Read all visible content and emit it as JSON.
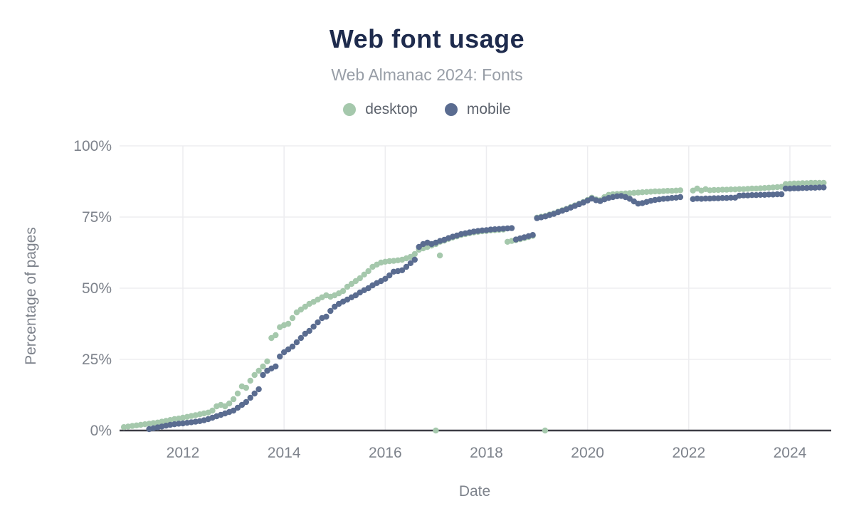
{
  "chart_data": {
    "type": "scatter",
    "title": "Web font usage",
    "subtitle": "Web Almanac 2024: Fonts",
    "legend_position": "top",
    "grid": true,
    "colors": {
      "title": "#1e2b4d",
      "subtitle": "#989ea7",
      "legendtext": "#5d636d",
      "tick": "#7d828b",
      "grid": "#ededf0",
      "axis": "#3c3c44",
      "desktop": "#a5c8ac",
      "mobile": "#5a6c90"
    },
    "x_axis": {
      "label": "Date",
      "range": [
        2010.75,
        2024.82
      ],
      "ticks": [
        {
          "v": 2012,
          "label": "2012"
        },
        {
          "v": 2014,
          "label": "2014"
        },
        {
          "v": 2016,
          "label": "2016"
        },
        {
          "v": 2018,
          "label": "2018"
        },
        {
          "v": 2020,
          "label": "2020"
        },
        {
          "v": 2022,
          "label": "2022"
        },
        {
          "v": 2024,
          "label": "2024"
        }
      ]
    },
    "y_axis": {
      "label": "Percentage of pages",
      "range": [
        0,
        100
      ],
      "ticks": [
        {
          "v": 0,
          "label": "0%"
        },
        {
          "v": 25,
          "label": "25%"
        },
        {
          "v": 50,
          "label": "50%"
        },
        {
          "v": 75,
          "label": "75%"
        },
        {
          "v": 100,
          "label": "100%"
        }
      ]
    },
    "series": [
      {
        "name": "desktop",
        "color": "#a5c8ac",
        "unit": "percent",
        "x_start": 2010.8333,
        "x_step": 0.083333,
        "values": [
          1.2,
          1.4,
          1.6,
          1.8,
          2.0,
          2.2,
          2.4,
          2.6,
          2.8,
          3.1,
          3.4,
          3.7,
          4.0,
          4.2,
          4.5,
          4.8,
          5.1,
          5.4,
          5.7,
          6.0,
          6.3,
          7.0,
          8.5,
          9.0,
          8.5,
          9.5,
          11.0,
          13.0,
          15.5,
          15.0,
          17.5,
          19.5,
          21.0,
          22.5,
          24.3,
          32.5,
          33.5,
          36.3,
          37.0,
          37.5,
          39.5,
          41.5,
          42.5,
          43.5,
          44.5,
          45.2,
          46.0,
          46.8,
          47.5,
          47.0,
          47.5,
          48.2,
          49.0,
          50.5,
          51.5,
          52.5,
          53.5,
          54.8,
          56.0,
          57.5,
          58.3,
          59.0,
          59.3,
          59.5,
          59.6,
          59.8,
          60.0,
          60.5,
          61.0,
          62.0,
          63.5,
          64.0,
          64.5,
          65.0,
          65.5,
          66.3,
          66.7,
          67.3,
          67.8,
          68.2,
          68.7,
          69.0,
          69.3,
          69.6,
          69.8,
          70.0,
          70.1,
          70.3,
          70.4,
          70.5,
          70.6,
          66.3,
          66.6,
          66.9,
          67.2,
          67.6,
          68.0,
          68.4,
          74.8,
          75.1,
          75.4,
          75.9,
          76.3,
          76.9,
          77.4,
          77.9,
          78.5,
          79.1,
          79.7,
          80.3,
          81.0,
          81.8,
          81.2,
          80.9,
          82.0,
          82.8,
          83.0,
          83.1,
          83.2,
          83.3,
          83.4,
          83.5,
          83.6,
          83.7,
          83.8,
          83.9,
          84.0,
          84.0,
          84.1,
          84.2,
          84.2,
          84.3,
          84.4,
          null,
          null,
          84.3,
          85.0,
          84.3,
          84.8,
          84.4,
          84.5,
          84.5,
          84.6,
          84.6,
          84.7,
          84.7,
          84.8,
          84.8,
          84.9,
          85.0,
          85.0,
          85.1,
          85.2,
          85.3,
          85.4,
          85.5,
          85.6,
          86.6,
          86.7,
          86.8,
          86.8,
          86.9,
          86.9,
          87.0,
          87.0,
          87.0,
          87.0
        ],
        "extra_points": [
          {
            "x": 2017.0,
            "y": 0
          },
          {
            "x": 2017.08,
            "y": 61.5
          },
          {
            "x": 2019.16,
            "y": 0
          }
        ]
      },
      {
        "name": "mobile",
        "color": "#5a6c90",
        "unit": "percent",
        "x_start": 2011.3333,
        "x_step": 0.083333,
        "values": [
          0.5,
          0.8,
          1.1,
          1.4,
          1.7,
          2.0,
          2.2,
          2.4,
          2.5,
          2.7,
          2.9,
          3.1,
          3.3,
          3.6,
          4.0,
          4.5,
          5.0,
          5.5,
          6.0,
          6.5,
          7.0,
          8.0,
          9.0,
          10.0,
          11.5,
          13.0,
          14.5,
          19.5,
          21.0,
          21.8,
          22.5,
          26.0,
          27.5,
          28.5,
          29.5,
          31.0,
          32.5,
          34.0,
          35.0,
          36.5,
          38.0,
          39.5,
          40.0,
          42.0,
          43.5,
          44.5,
          45.3,
          46.0,
          46.8,
          47.5,
          48.5,
          49.3,
          50.0,
          51.0,
          51.8,
          52.5,
          53.3,
          54.5,
          55.8,
          56.0,
          56.3,
          57.5,
          58.8,
          60.0,
          64.5,
          65.5,
          66.0,
          65.5,
          66.0,
          66.6,
          67.0,
          67.6,
          68.1,
          68.5,
          69.0,
          69.3,
          69.6,
          69.9,
          70.1,
          70.3,
          70.4,
          70.6,
          70.7,
          70.8,
          70.9,
          71.0,
          71.1,
          67.1,
          67.5,
          67.9,
          68.3,
          68.7,
          74.6,
          74.9,
          75.2,
          75.7,
          76.1,
          76.7,
          77.2,
          77.7,
          78.3,
          78.9,
          79.5,
          80.1,
          80.8,
          81.5,
          80.9,
          80.6,
          81.2,
          81.7,
          82.0,
          82.3,
          82.4,
          82.0,
          81.4,
          80.5,
          79.7,
          79.9,
          80.3,
          80.7,
          81.0,
          81.2,
          81.4,
          81.5,
          81.7,
          81.8,
          82.0,
          null,
          null,
          81.3,
          81.5,
          81.4,
          81.5,
          81.5,
          81.6,
          81.6,
          81.7,
          81.7,
          81.8,
          81.8,
          82.5,
          82.6,
          82.6,
          82.7,
          82.7,
          82.8,
          82.8,
          82.9,
          82.9,
          83.0,
          83.0,
          85.0,
          85.0,
          85.1,
          85.1,
          85.2,
          85.2,
          85.3,
          85.3,
          85.4,
          85.4
        ]
      }
    ]
  }
}
